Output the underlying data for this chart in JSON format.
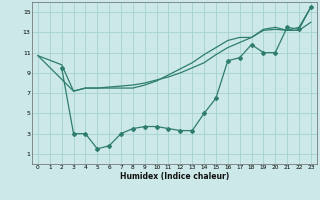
{
  "xlabel": "Humidex (Indice chaleur)",
  "bg_color": "#cce8e8",
  "line_color": "#2e7d6e",
  "grid_color": "#aad4d4",
  "xlim": [
    -0.5,
    23.5
  ],
  "ylim": [
    0,
    16
  ],
  "xticks": [
    0,
    1,
    2,
    3,
    4,
    5,
    6,
    7,
    8,
    9,
    10,
    11,
    12,
    13,
    14,
    15,
    16,
    17,
    18,
    19,
    20,
    21,
    22,
    23
  ],
  "yticks": [
    1,
    3,
    5,
    7,
    9,
    11,
    13,
    15
  ],
  "series": [
    {
      "x": [
        0,
        2,
        3,
        4,
        5,
        6,
        7,
        8,
        9,
        10,
        11,
        12,
        13,
        14,
        15,
        16,
        17,
        18,
        19,
        20,
        21,
        22,
        23
      ],
      "y": [
        10.7,
        9.8,
        7.2,
        7.5,
        7.5,
        7.6,
        7.7,
        7.8,
        8.0,
        8.3,
        8.6,
        9.0,
        9.5,
        10.0,
        10.8,
        11.5,
        12.0,
        12.5,
        13.2,
        13.3,
        13.2,
        13.2,
        14.0
      ],
      "marker": false
    },
    {
      "x": [
        0,
        3,
        4,
        5,
        6,
        7,
        8,
        9,
        10,
        11,
        12,
        13,
        14,
        15,
        16,
        17,
        18,
        19,
        20,
        21,
        22,
        23
      ],
      "y": [
        10.7,
        7.2,
        7.5,
        7.5,
        7.5,
        7.5,
        7.5,
        7.8,
        8.2,
        8.8,
        9.4,
        10.0,
        10.8,
        11.5,
        12.2,
        12.5,
        12.5,
        13.3,
        13.5,
        13.2,
        13.5,
        15.5
      ],
      "marker": false
    },
    {
      "x": [
        2,
        3,
        4,
        5,
        6,
        7,
        8,
        9,
        10,
        11,
        12,
        13,
        14,
        15,
        16,
        17,
        18,
        19,
        20,
        21,
        22,
        23
      ],
      "y": [
        9.5,
        3.0,
        3.0,
        1.5,
        1.8,
        3.0,
        3.5,
        3.7,
        3.7,
        3.5,
        3.3,
        3.3,
        5.0,
        6.5,
        10.2,
        10.5,
        11.8,
        11.0,
        11.0,
        13.5,
        13.3,
        15.5
      ],
      "marker": true
    }
  ]
}
